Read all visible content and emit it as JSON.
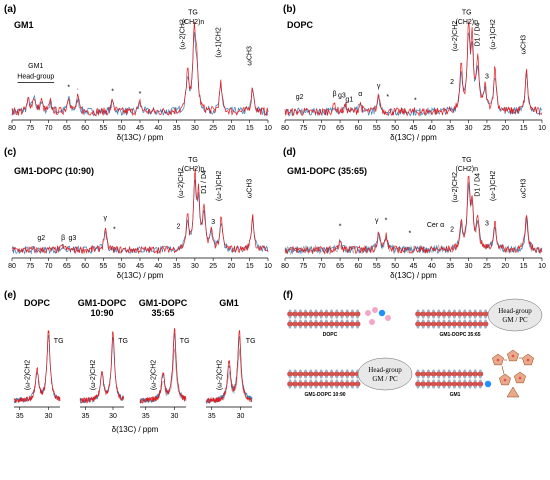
{
  "chart_data": [
    {
      "type": "line",
      "panel": "(a)",
      "title": "GM1",
      "xlabel": "δ(13C) / ppm",
      "xlim": [
        80,
        10
      ],
      "x_ticks": [
        80,
        75,
        70,
        65,
        60,
        55,
        50,
        45,
        40,
        35,
        30,
        25,
        20,
        15,
        10
      ],
      "ylabel": "",
      "peaks": [
        {
          "x": 30.2,
          "h": 1.0
        },
        {
          "x": 32.0,
          "h": 0.5
        },
        {
          "x": 29.5,
          "h": 0.55
        },
        {
          "x": 22.9,
          "h": 0.35
        },
        {
          "x": 14.2,
          "h": 0.32
        },
        {
          "x": 75.5,
          "h": 0.16
        },
        {
          "x": 74.0,
          "h": 0.18
        },
        {
          "x": 72.0,
          "h": 0.14
        },
        {
          "x": 69.5,
          "h": 0.12
        },
        {
          "x": 64.5,
          "h": 0.2
        },
        {
          "x": 62.0,
          "h": 0.18
        },
        {
          "x": 52.5,
          "h": 0.15
        },
        {
          "x": 45.0,
          "h": 0.12
        }
      ],
      "annotations": [
        {
          "text": "TG",
          "x": 30.5,
          "y": 1.22
        },
        {
          "text": "(CH2)n",
          "x": 30.5,
          "y": 1.1
        },
        {
          "text": "(ω-2)CH2",
          "x": 32.8,
          "y": 0.78,
          "rot": true
        },
        {
          "text": "(ω-1)CH2",
          "x": 23.0,
          "y": 0.68,
          "rot": true
        },
        {
          "text": "ωCH3",
          "x": 14.5,
          "y": 0.58,
          "rot": true
        },
        {
          "text": "GM1",
          "x": 73.5,
          "y": 0.55
        },
        {
          "text": "Head-group",
          "x": 73.5,
          "y": 0.42
        },
        {
          "text": "*",
          "x": 64.5,
          "y": 0.28
        },
        {
          "text": "*",
          "x": 52.5,
          "y": 0.23
        },
        {
          "text": "*",
          "x": 45.0,
          "y": 0.2
        },
        {
          "text": "·",
          "x": 62.0,
          "y": 0.26
        }
      ],
      "colors": {
        "red": "#e41a1c",
        "blue": "#377eb8"
      }
    },
    {
      "type": "line",
      "panel": "(b)",
      "title": "DOPC",
      "xlabel": "δ(13C) / ppm",
      "xlim": [
        80,
        10
      ],
      "x_ticks": [
        80,
        75,
        70,
        65,
        60,
        55,
        50,
        45,
        40,
        35,
        30,
        25,
        20,
        15,
        10
      ],
      "ylabel": "",
      "peaks": [
        {
          "x": 30.0,
          "h": 1.0
        },
        {
          "x": 29.0,
          "h": 0.85
        },
        {
          "x": 27.5,
          "h": 0.62
        },
        {
          "x": 32.0,
          "h": 0.55
        },
        {
          "x": 25.5,
          "h": 0.3
        },
        {
          "x": 22.8,
          "h": 0.55
        },
        {
          "x": 14.2,
          "h": 0.52
        },
        {
          "x": 54.5,
          "h": 0.2
        },
        {
          "x": 66.5,
          "h": 0.1
        },
        {
          "x": 63.5,
          "h": 0.08
        },
        {
          "x": 59.5,
          "h": 0.1
        }
      ],
      "annotations": [
        {
          "text": "TG",
          "x": 30.5,
          "y": 1.22
        },
        {
          "text": "(CH2)n",
          "x": 30.5,
          "y": 1.1
        },
        {
          "text": "(ω-2)CH2",
          "x": 33.2,
          "y": 0.76,
          "rot": true
        },
        {
          "text": "D1 / D4",
          "x": 27.0,
          "y": 0.82,
          "rot": true
        },
        {
          "text": "(ω-1)CH2",
          "x": 22.8,
          "y": 0.78,
          "rot": true
        },
        {
          "text": "ωCH3",
          "x": 14.5,
          "y": 0.72,
          "rot": true
        },
        {
          "text": "2",
          "x": 34.5,
          "y": 0.35
        },
        {
          "text": "3",
          "x": 25.0,
          "y": 0.42
        },
        {
          "text": "γ",
          "x": 54.5,
          "y": 0.3
        },
        {
          "text": "α",
          "x": 59.5,
          "y": 0.2
        },
        {
          "text": "β",
          "x": 66.5,
          "y": 0.2
        },
        {
          "text": "g2",
          "x": 76.0,
          "y": 0.16
        },
        {
          "text": "g3",
          "x": 64.5,
          "y": 0.18
        },
        {
          "text": "g1",
          "x": 62.5,
          "y": 0.13
        },
        {
          "text": "*",
          "x": 52.0,
          "y": 0.16
        },
        {
          "text": "*",
          "x": 44.5,
          "y": 0.12
        }
      ],
      "colors": {
        "red": "#e41a1c",
        "blue": "#377eb8"
      }
    },
    {
      "type": "line",
      "panel": "(c)",
      "title": "GM1-DOPC (10:90)",
      "xlabel": "δ(13C) / ppm",
      "xlim": [
        80,
        10
      ],
      "x_ticks": [
        80,
        75,
        70,
        65,
        60,
        55,
        50,
        45,
        40,
        35,
        30,
        25,
        20,
        15,
        10
      ],
      "ylabel": "",
      "peaks": [
        {
          "x": 30.0,
          "h": 1.0
        },
        {
          "x": 29.0,
          "h": 0.7
        },
        {
          "x": 27.5,
          "h": 0.55
        },
        {
          "x": 32.0,
          "h": 0.45
        },
        {
          "x": 25.5,
          "h": 0.25
        },
        {
          "x": 22.8,
          "h": 0.42
        },
        {
          "x": 14.2,
          "h": 0.5
        },
        {
          "x": 54.5,
          "h": 0.3
        },
        {
          "x": 66.0,
          "h": 0.06
        }
      ],
      "annotations": [
        {
          "text": "TG",
          "x": 30.5,
          "y": 1.22
        },
        {
          "text": "(CH2)n",
          "x": 30.5,
          "y": 1.1
        },
        {
          "text": "(ω-2)CH2",
          "x": 33.2,
          "y": 0.72,
          "rot": true
        },
        {
          "text": "D1 / D4",
          "x": 27.0,
          "y": 0.78,
          "rot": true
        },
        {
          "text": "(ω-1)CH2",
          "x": 22.8,
          "y": 0.68,
          "rot": true
        },
        {
          "text": "ωCH3",
          "x": 14.5,
          "y": 0.72,
          "rot": true
        },
        {
          "text": "2",
          "x": 34.5,
          "y": 0.3
        },
        {
          "text": "3",
          "x": 25.0,
          "y": 0.36
        },
        {
          "text": "γ",
          "x": 54.5,
          "y": 0.42
        },
        {
          "text": "β",
          "x": 66.0,
          "y": 0.14
        },
        {
          "text": "g2",
          "x": 72.0,
          "y": 0.14
        },
        {
          "text": "g3",
          "x": 63.5,
          "y": 0.14
        },
        {
          "text": "*",
          "x": 52.0,
          "y": 0.26
        }
      ],
      "colors": {
        "red": "#e41a1c",
        "blue": "#377eb8"
      }
    },
    {
      "type": "line",
      "panel": "(d)",
      "title": "GM1-DOPC (35:65)",
      "xlabel": "δ(13C) / ppm",
      "xlim": [
        80,
        10
      ],
      "x_ticks": [
        80,
        75,
        70,
        65,
        60,
        55,
        50,
        45,
        40,
        35,
        30,
        25,
        20,
        15,
        10
      ],
      "ylabel": "",
      "peaks": [
        {
          "x": 30.0,
          "h": 1.0
        },
        {
          "x": 29.0,
          "h": 0.6
        },
        {
          "x": 27.5,
          "h": 0.45
        },
        {
          "x": 32.0,
          "h": 0.38
        },
        {
          "x": 22.8,
          "h": 0.4
        },
        {
          "x": 14.2,
          "h": 0.5
        },
        {
          "x": 54.5,
          "h": 0.25
        },
        {
          "x": 52.5,
          "h": 0.2
        },
        {
          "x": 65.0,
          "h": 0.12
        }
      ],
      "annotations": [
        {
          "text": "TG",
          "x": 30.5,
          "y": 1.22
        },
        {
          "text": "(CH2)n",
          "x": 30.5,
          "y": 1.1
        },
        {
          "text": "(ω-2)CH2",
          "x": 33.2,
          "y": 0.66,
          "rot": true
        },
        {
          "text": "D1 / D4",
          "x": 27.0,
          "y": 0.74,
          "rot": true
        },
        {
          "text": "(ω-1)CH2",
          "x": 22.8,
          "y": 0.68,
          "rot": true
        },
        {
          "text": "ωCH3",
          "x": 14.5,
          "y": 0.72,
          "rot": true
        },
        {
          "text": "Cer α",
          "x": 39.0,
          "y": 0.32
        },
        {
          "text": "2",
          "x": 34.5,
          "y": 0.26
        },
        {
          "text": "3",
          "x": 25.0,
          "y": 0.34
        },
        {
          "text": "γ",
          "x": 55.0,
          "y": 0.38
        },
        {
          "text": "*",
          "x": 52.5,
          "y": 0.38
        },
        {
          "text": "*",
          "x": 65.0,
          "y": 0.3
        },
        {
          "text": "*",
          "x": 46.0,
          "y": 0.2
        }
      ],
      "colors": {
        "red": "#e41a1c",
        "blue": "#377eb8",
        "gray": "#b0b0b0"
      }
    },
    {
      "type": "line",
      "panel": "(e)",
      "xlabel": "δ(13C) / ppm",
      "xlim": [
        36,
        28
      ],
      "x_ticks": [
        35,
        30
      ],
      "ylabel": "",
      "subpanels": [
        {
          "title": "DOPC",
          "peaks": [
            {
              "x": 30.0,
              "h": 1.0
            },
            {
              "x": 32.0,
              "h": 0.45
            }
          ]
        },
        {
          "title": "GM1-DOPC\n10:90",
          "peaks": [
            {
              "x": 30.0,
              "h": 1.0
            },
            {
              "x": 32.0,
              "h": 0.42
            }
          ]
        },
        {
          "title": "GM1-DOPC\n35:65",
          "peaks": [
            {
              "x": 30.0,
              "h": 1.0
            },
            {
              "x": 32.0,
              "h": 0.38
            }
          ]
        },
        {
          "title": "GM1",
          "peaks": [
            {
              "x": 30.2,
              "h": 1.0
            },
            {
              "x": 32.0,
              "h": 0.55
            }
          ]
        }
      ],
      "annotations": [
        {
          "text": "TG"
        },
        {
          "text": "(ω-2)CH2"
        }
      ],
      "colors": {
        "red": "#e41a1c",
        "blue": "#377eb8",
        "gray": "#b0b0b0"
      }
    }
  ],
  "figure": {
    "panel_f": {
      "label": "(f)",
      "items": [
        {
          "caption": "DOPC",
          "bubble": ""
        },
        {
          "caption": "GM1-DOPC 35:65",
          "bubble": "Head-group\nGM / PC"
        },
        {
          "caption": "GM1-DOPC 10:90",
          "bubble": "Head-group\nGM / PC"
        },
        {
          "caption": "GM1",
          "bubble": ""
        }
      ]
    }
  }
}
